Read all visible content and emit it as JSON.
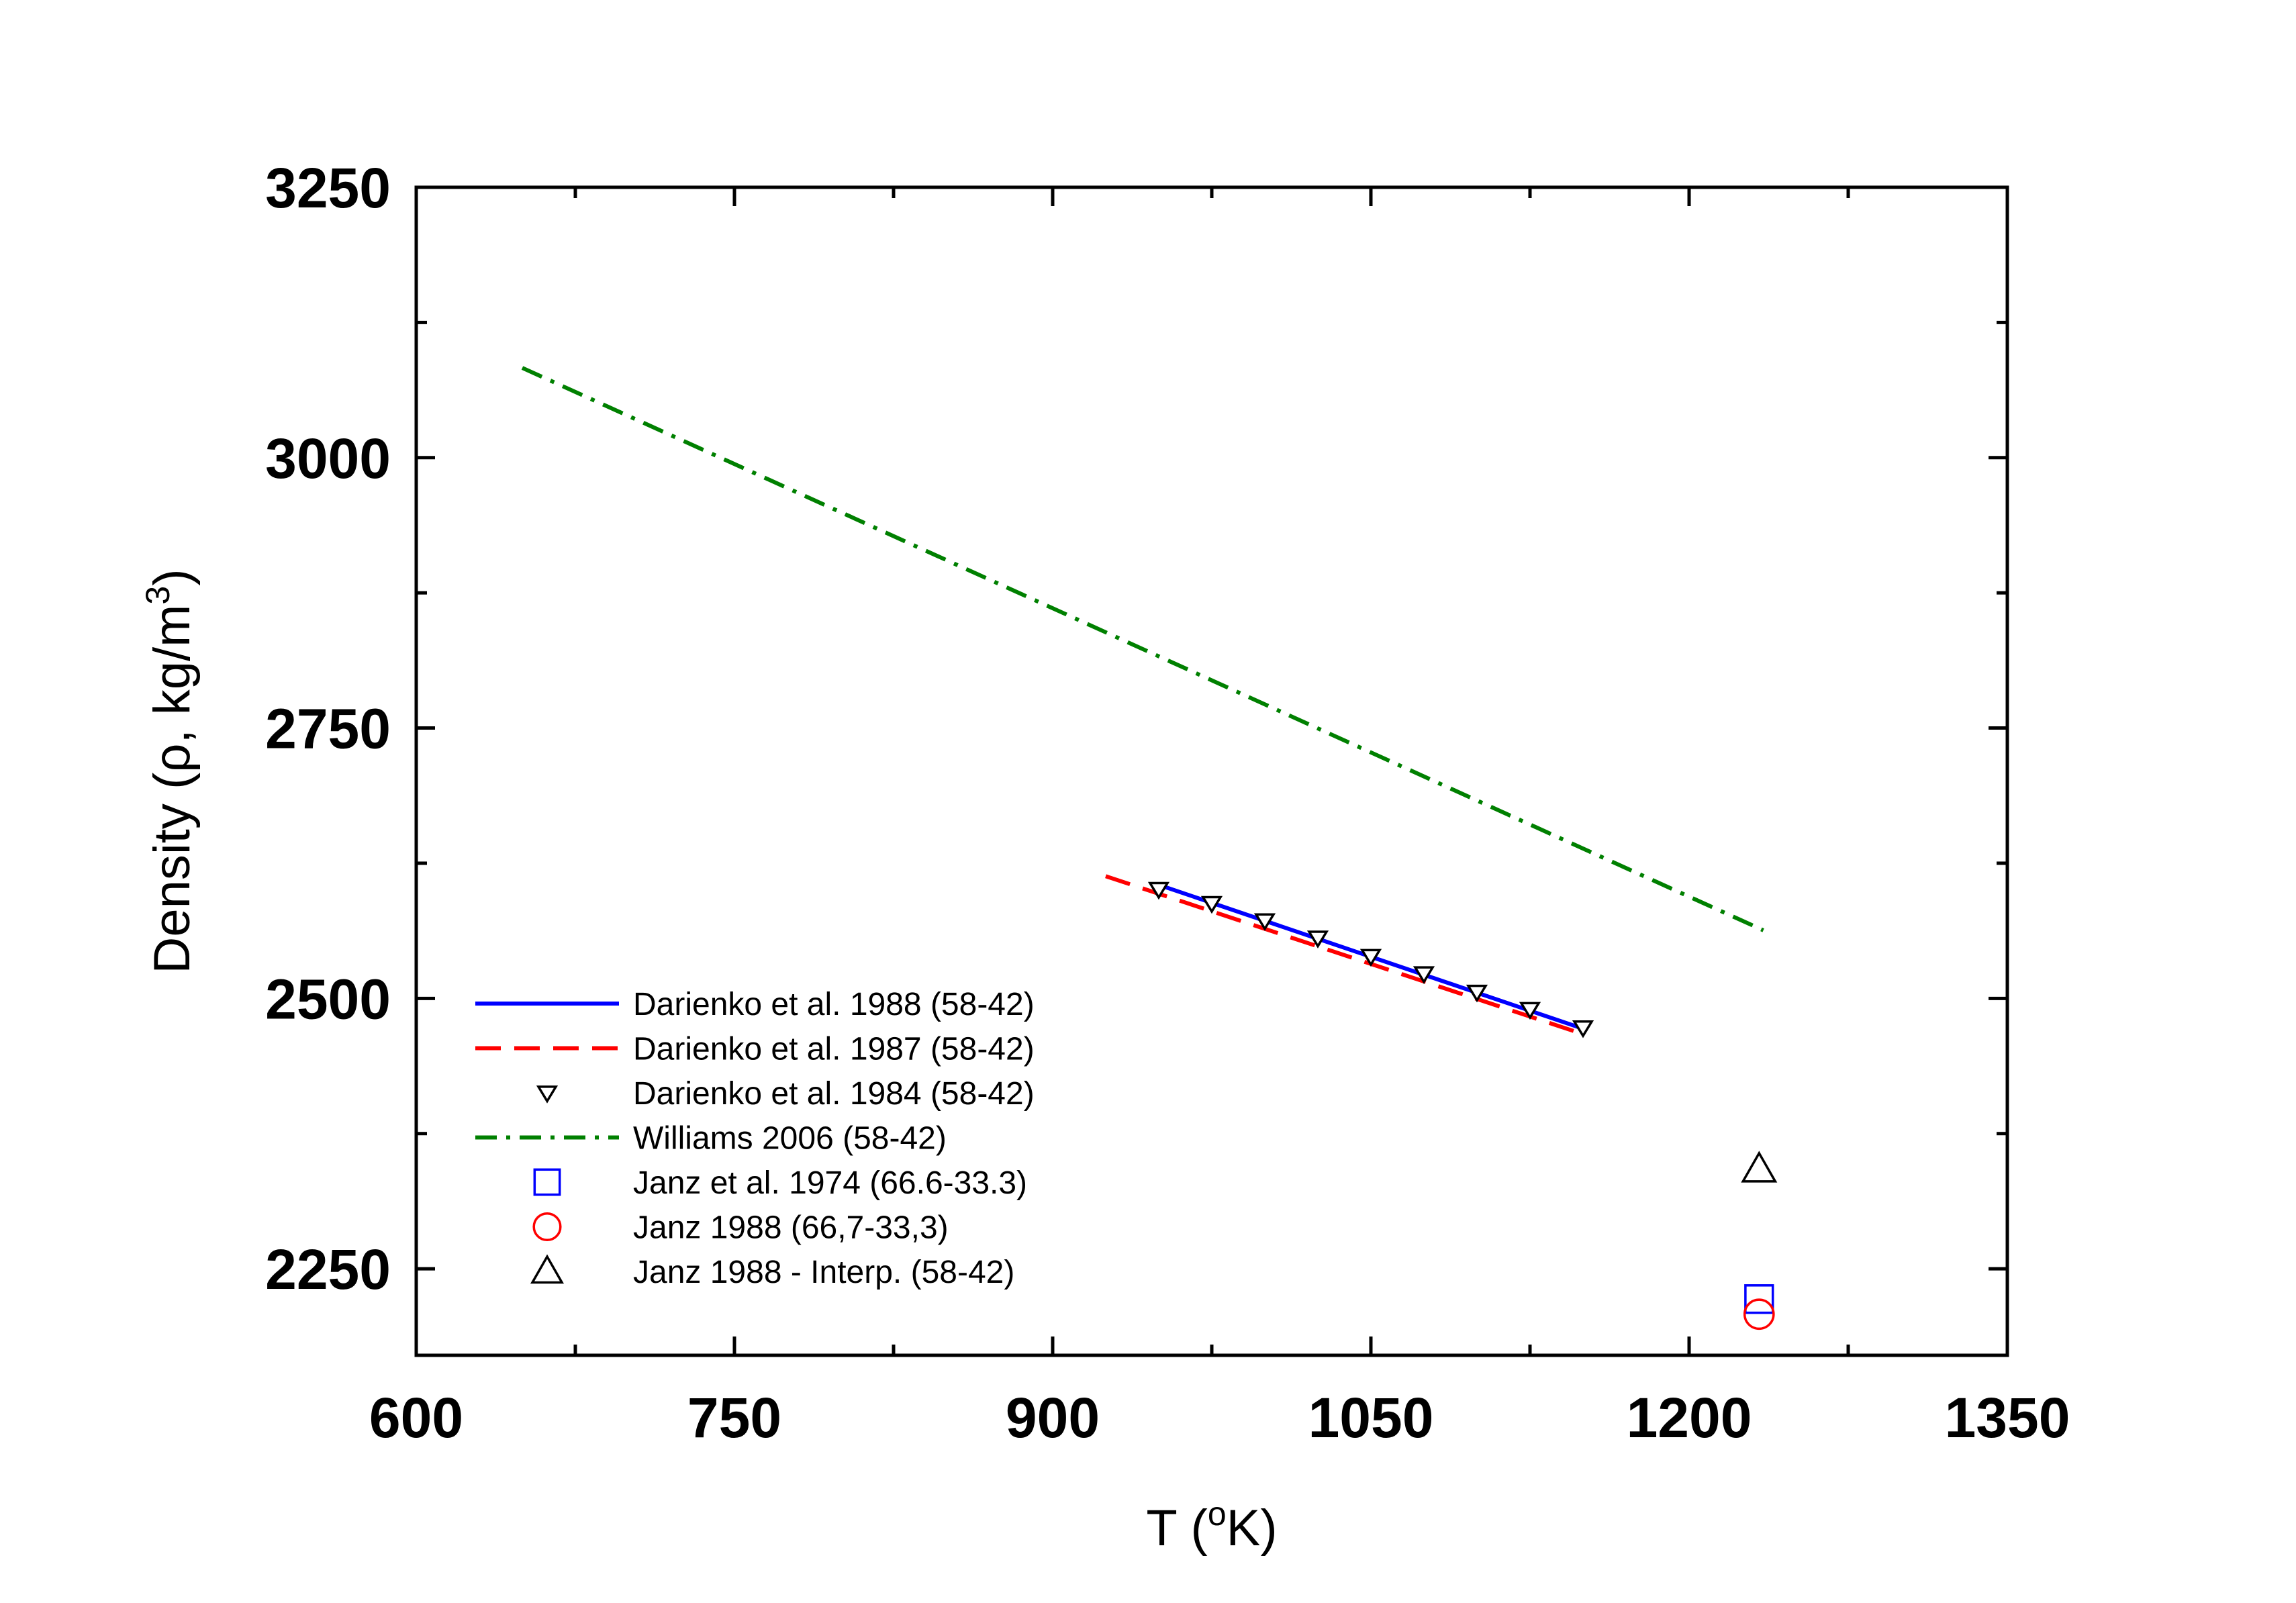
{
  "chart_data": {
    "type": "line",
    "xlabel": "T (",
    "xlabel_sup": "o",
    "xlabel_end": "K)",
    "ylabel": "Density (ρ, kg/m",
    "ylabel_sup": "3",
    "ylabel_end": ")",
    "xlim": [
      600,
      1350
    ],
    "ylim": [
      2170,
      3250
    ],
    "xticks": [
      600,
      750,
      900,
      1050,
      1200,
      1350
    ],
    "yticks": [
      2250,
      2500,
      2750,
      3000,
      3250
    ],
    "xtick_labels": [
      "600",
      "750",
      "900",
      "1050",
      "1200",
      "1350"
    ],
    "ytick_labels": [
      "2250",
      "2500",
      "2750",
      "3000",
      "3250"
    ],
    "grid": false,
    "legend_position": "bottom-left",
    "series": [
      {
        "name": "Darienko et al. 1988 (58-42)",
        "style": "solid",
        "marker": "none",
        "color": "#0000ff",
        "x": [
          950,
          1150
        ],
        "y": [
          2605,
          2472
        ]
      },
      {
        "name": "Darienko et al. 1987 (58-42)",
        "style": "dashed",
        "marker": "none",
        "color": "#ff0000",
        "x": [
          925,
          1150
        ],
        "y": [
          2613,
          2467
        ]
      },
      {
        "name": "Darienko et al. 1984 (58-42)",
        "style": "none",
        "marker": "triangle-down",
        "color": "#000000",
        "x": [
          950,
          975,
          1000,
          1025,
          1050,
          1075,
          1100,
          1125,
          1150
        ],
        "y": [
          2601,
          2588,
          2572,
          2556,
          2539,
          2523,
          2506,
          2490,
          2473
        ]
      },
      {
        "name": "Williams 2006 (58-42)",
        "style": "dashdot",
        "marker": "none",
        "color": "#008000",
        "x": [
          650,
          1235
        ],
        "y": [
          3083,
          2563
        ]
      },
      {
        "name": "Janz et al. 1974 (66.6-33.3)",
        "style": "none",
        "marker": "square",
        "color": "#0000ff",
        "x": [
          1233
        ],
        "y": [
          2222
        ]
      },
      {
        "name": "Janz 1988 (66,7-33,3)",
        "style": "none",
        "marker": "circle",
        "color": "#ff0000",
        "x": [
          1233
        ],
        "y": [
          2208
        ]
      },
      {
        "name": "Janz 1988 - Interp. (58-42)",
        "style": "none",
        "marker": "triangle-up",
        "color": "#000000",
        "x": [
          1233
        ],
        "y": [
          2342
        ]
      }
    ]
  }
}
